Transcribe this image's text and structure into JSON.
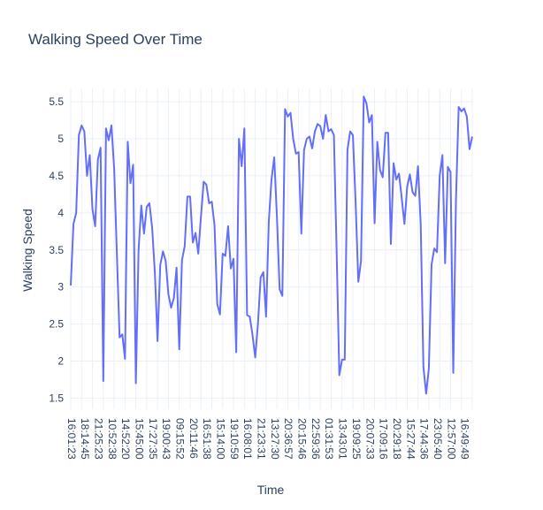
{
  "chart_data": {
    "type": "line",
    "title": "Walking Speed Over Time",
    "xlabel": "Time",
    "ylabel": "Walking Speed",
    "ylim": [
      1.35,
      5.68
    ],
    "yticks": [
      1.5,
      2,
      2.5,
      3,
      3.5,
      4,
      4.5,
      5,
      5.5
    ],
    "ytick_labels": [
      "1.5",
      "2",
      "2.5",
      "3",
      "3.5",
      "4",
      "4.5",
      "5",
      "5.5"
    ],
    "xtick_labels": [
      "16:01:23",
      "18:14:45",
      "21:25:23",
      "10:52:38",
      "14:52:20",
      "15:45:00",
      "17:27:35",
      "19:00:43",
      "09:15:52",
      "20:11:46",
      "16:51:38",
      "15:14:00",
      "19:10:59",
      "16:08:01",
      "21:23:31",
      "13:27:30",
      "20:36:57",
      "20:15:46",
      "22:59:36",
      "01:31:53",
      "13:43:01",
      "19:09:25",
      "20:07:33",
      "17:09:16",
      "20:29:18",
      "15:27:44",
      "17:44:36",
      "23:05:40",
      "12:57:00",
      "16:49:49"
    ],
    "grid": true,
    "series": [
      {
        "color": "#636efa",
        "values": [
          3.02,
          3.85,
          4.0,
          5.05,
          5.18,
          5.1,
          4.5,
          4.78,
          4.05,
          3.82,
          4.72,
          4.88,
          1.73,
          5.14,
          4.98,
          5.18,
          4.6,
          3.45,
          2.32,
          2.36,
          2.03,
          4.96,
          4.4,
          4.65,
          1.7,
          3.5,
          4.1,
          3.72,
          4.08,
          4.13,
          3.8,
          3.2,
          2.27,
          3.3,
          3.48,
          3.35,
          2.9,
          2.72,
          2.85,
          3.26,
          2.16,
          3.36,
          3.55,
          4.22,
          4.22,
          3.6,
          3.73,
          3.45,
          3.95,
          4.42,
          4.38,
          4.13,
          4.15,
          3.83,
          2.77,
          2.63,
          3.45,
          3.42,
          3.82,
          3.25,
          3.38,
          2.12,
          5.0,
          4.63,
          5.14,
          2.62,
          2.6,
          2.35,
          2.05,
          2.5,
          3.13,
          3.2,
          2.6,
          3.88,
          4.45,
          4.75,
          3.95,
          2.97,
          2.88,
          5.4,
          5.3,
          5.35,
          5.0,
          4.8,
          4.82,
          3.72,
          4.85,
          5.0,
          5.03,
          4.87,
          5.1,
          5.2,
          5.17,
          5.0,
          5.32,
          5.1,
          5.13,
          5.05,
          3.5,
          1.81,
          2.02,
          2.02,
          4.85,
          5.1,
          5.05,
          4.15,
          3.07,
          3.35,
          5.57,
          5.48,
          5.22,
          5.32,
          3.86,
          4.96,
          4.58,
          4.48,
          5.08,
          5.08,
          3.58,
          4.67,
          4.45,
          4.53,
          4.2,
          3.85,
          4.35,
          4.52,
          4.28,
          4.23,
          4.63,
          3.85,
          1.92,
          1.56,
          1.9,
          3.3,
          3.52,
          3.47,
          4.5,
          4.78,
          3.32,
          4.62,
          4.55,
          1.84,
          4.18,
          5.43,
          5.37,
          5.41,
          5.3,
          4.86,
          5.03
        ]
      }
    ]
  }
}
